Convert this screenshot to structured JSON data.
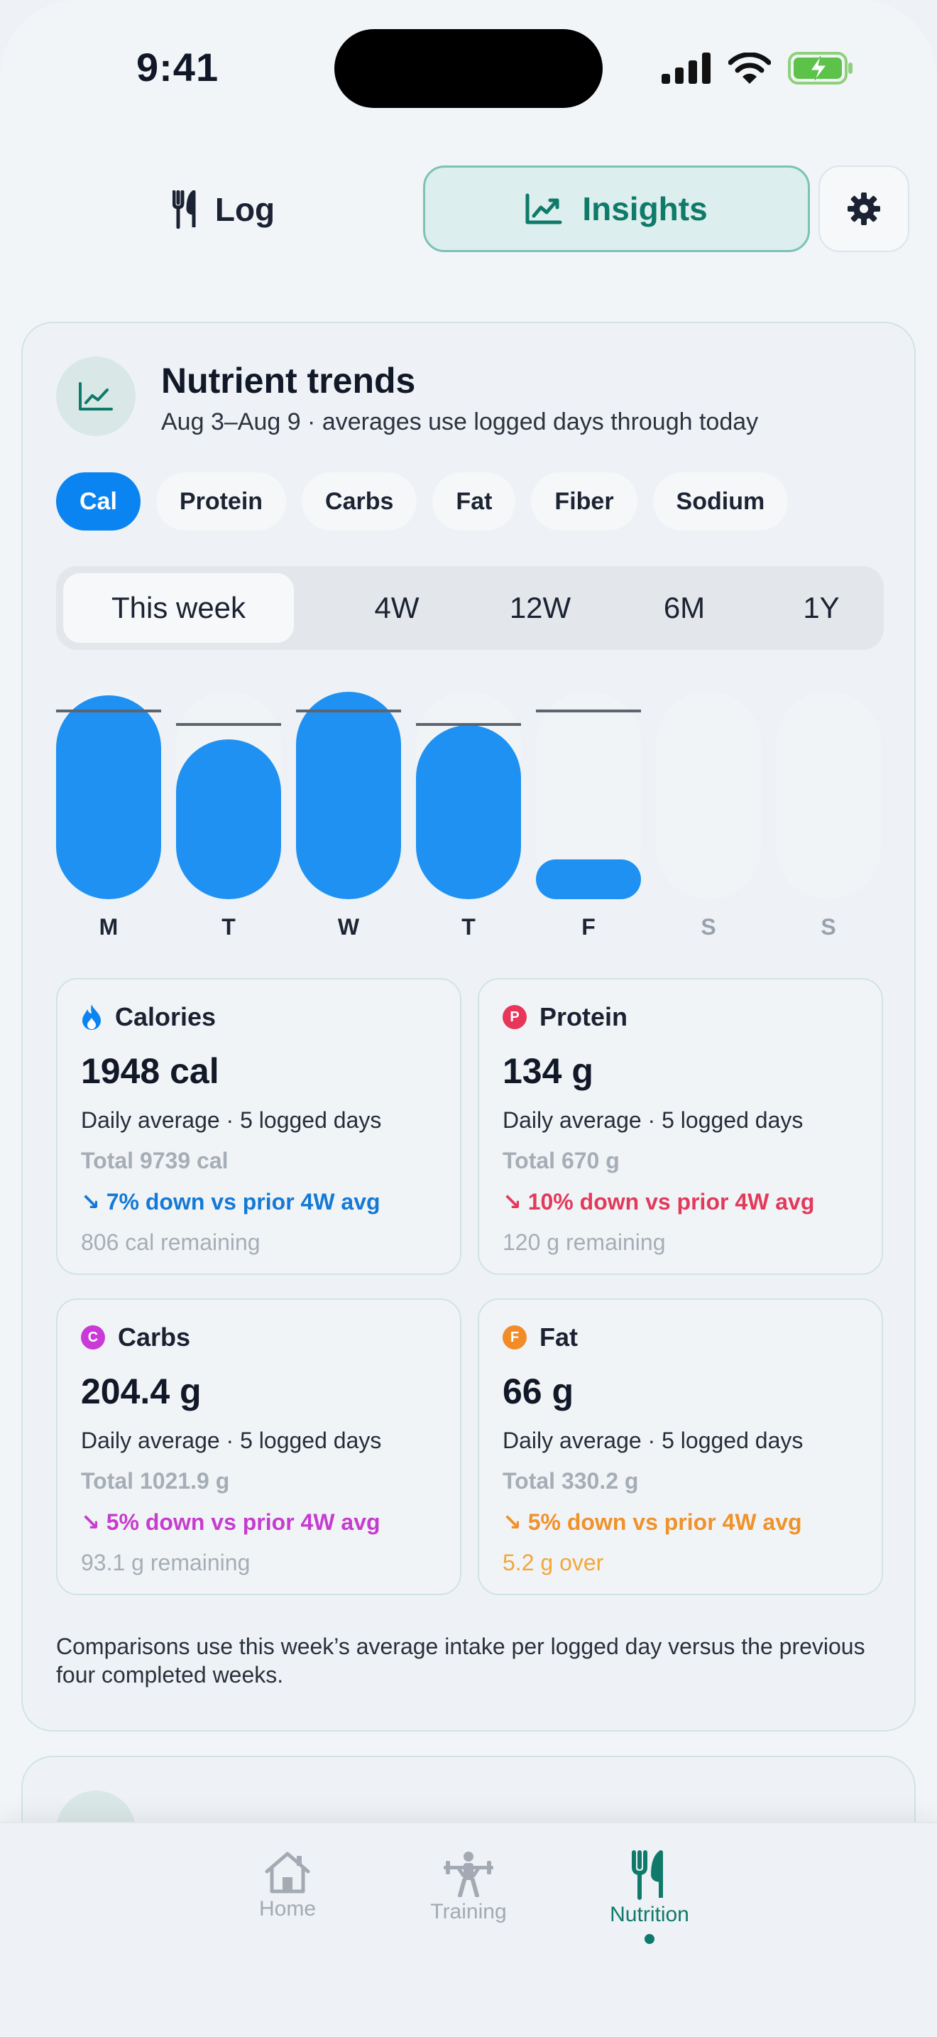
{
  "status": {
    "time": "9:41"
  },
  "nav": {
    "log_label": "Log",
    "insights_label": "Insights"
  },
  "card": {
    "title": "Nutrient trends",
    "subtitle": "Aug 3–Aug 9 · averages use logged days through today",
    "chips": [
      "Cal",
      "Protein",
      "Carbs",
      "Fat",
      "Fiber",
      "Sodium"
    ],
    "active_chip": "Cal",
    "ranges": [
      "This week",
      "4W",
      "12W",
      "6M",
      "1Y"
    ],
    "active_range": "This week"
  },
  "chart_data": {
    "type": "bar",
    "categories": [
      "M",
      "T",
      "W",
      "T",
      "F",
      "S",
      "S"
    ],
    "values": [
      1.03,
      0.81,
      1.05,
      0.88,
      0.2,
      0,
      0
    ],
    "goal": [
      0.96,
      0.89,
      0.96,
      0.89,
      0.96,
      null,
      null
    ],
    "logged": [
      true,
      true,
      true,
      true,
      true,
      false,
      false
    ],
    "ylim": [
      0,
      1.1
    ]
  },
  "stats": [
    {
      "name": "Calories",
      "icon": "flame-icon",
      "color": "#0a84f0",
      "value": "1948 cal",
      "avg": "Daily average · 5 logged days",
      "total": "Total 9739 cal",
      "trend": "↘ 7% down vs prior 4W avg",
      "trend_color": "#1479d6",
      "remaining": "806 cal remaining",
      "remaining_color": "#a5adb6"
    },
    {
      "name": "Protein",
      "icon": "protein-badge-icon",
      "badge": "P",
      "color": "#e8365a",
      "value": "134 g",
      "avg": "Daily average · 5 logged days",
      "total": "Total 670 g",
      "trend": "↘ 10% down vs prior 4W avg",
      "trend_color": "#e23a5b",
      "remaining": "120 g remaining",
      "remaining_color": "#a5adb6"
    },
    {
      "name": "Carbs",
      "icon": "carbs-badge-icon",
      "badge": "C",
      "color": "#c93ad6",
      "value": "204.4 g",
      "avg": "Daily average · 5 logged days",
      "total": "Total 1021.9 g",
      "trend": "↘ 5% down vs prior 4W avg",
      "trend_color": "#c63ccf",
      "remaining": "93.1 g remaining",
      "remaining_color": "#a5adb6"
    },
    {
      "name": "Fat",
      "icon": "fat-badge-icon",
      "badge": "F",
      "color": "#f28c28",
      "value": "66 g",
      "avg": "Daily average · 5 logged days",
      "total": "Total 330.2 g",
      "trend": "↘ 5% down vs prior 4W avg",
      "trend_color": "#f0922b",
      "remaining": "5.2 g over",
      "remaining_color": "#f2a73a"
    }
  ],
  "note": "Comparisons use this week’s average intake per logged day versus the previous four completed weeks.",
  "tabs": [
    {
      "label": "Home",
      "icon": "home-icon"
    },
    {
      "label": "Training",
      "icon": "weightlifter-icon"
    },
    {
      "label": "Nutrition",
      "icon": "fork-knife-icon"
    }
  ],
  "active_tab": "Nutrition"
}
